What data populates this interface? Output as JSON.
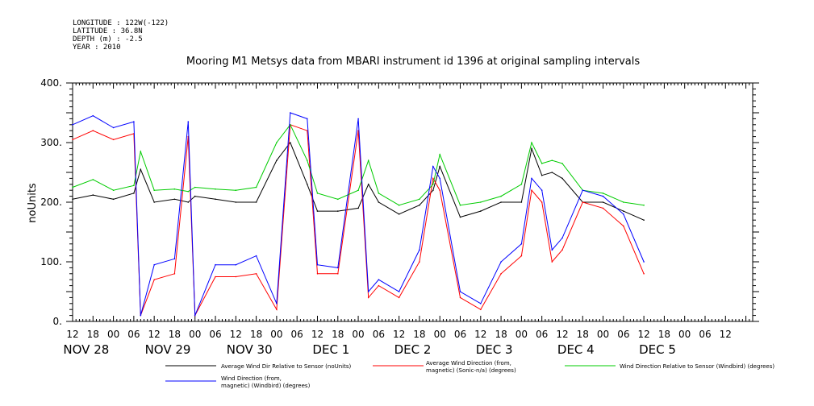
{
  "header": {
    "longitude": "LONGITUDE : 122W(-122)",
    "latitude": "LATITUDE : 36.8N",
    "depth": "DEPTH (m) : -2.5",
    "year": "YEAR : 2010"
  },
  "chart_data": {
    "type": "line",
    "title": "Mooring M1 Metsys data from MBARI instrument id 1396 at original sampling intervals",
    "ylabel": "noUnits",
    "xlabel": "",
    "ylim": [
      0,
      400
    ],
    "yticks": [
      0,
      100,
      200,
      300,
      400
    ],
    "ytick_labels": [
      "0.",
      "100.",
      "200.",
      "300.",
      "400."
    ],
    "xlim_hours": [
      0,
      200
    ],
    "hour_ticks": [
      "12",
      "18",
      "00",
      "06",
      "12",
      "18",
      "00",
      "06",
      "12",
      "18",
      "00",
      "06",
      "12",
      "18",
      "00",
      "06",
      "12",
      "18",
      "00",
      "06",
      "12",
      "18",
      "00",
      "06",
      "12",
      "18",
      "00",
      "06",
      "12",
      "18",
      "00",
      "06",
      "12"
    ],
    "date_labels": [
      "NOV 28",
      "NOV 29",
      "NOV 30",
      "DEC  1",
      "DEC  2",
      "DEC  3",
      "DEC  4",
      "DEC  5"
    ],
    "x": [
      "Nov 28 12:00",
      "Nov 28 18:00",
      "Nov 29 00:00",
      "Nov 29 06:00",
      "Nov 29 08:00",
      "Nov 29 12:00",
      "Nov 29 18:00",
      "Nov 29 22:00",
      "Nov 30 00:00",
      "Nov 30 06:00",
      "Nov 30 12:00",
      "Nov 30 18:00",
      "Dec 1 00:00",
      "Dec 1 04:00",
      "Dec 1 09:00",
      "Dec 1 12:00",
      "Dec 1 18:00",
      "Dec 2 00:00",
      "Dec 2 03:00",
      "Dec 2 06:00",
      "Dec 2 12:00",
      "Dec 2 18:00",
      "Dec 2 22:00",
      "Dec 3 00:00",
      "Dec 3 06:00",
      "Dec 3 12:00",
      "Dec 3 18:00",
      "Dec 4 00:00",
      "Dec 4 03:00",
      "Dec 4 06:00",
      "Dec 4 09:00",
      "Dec 4 12:00",
      "Dec 4 18:00",
      "Dec 5 00:00",
      "Dec 5 06:00",
      "Dec 5 12:00"
    ],
    "series": [
      {
        "name": "Average Wind Dir Relative to Sensor (noUnits)",
        "color": "#000000",
        "values": [
          205,
          212,
          205,
          215,
          255,
          200,
          205,
          200,
          210,
          205,
          200,
          200,
          270,
          300,
          230,
          185,
          185,
          190,
          230,
          200,
          180,
          195,
          220,
          260,
          175,
          185,
          200,
          200,
          290,
          245,
          250,
          240,
          200,
          200,
          185,
          170
        ]
      },
      {
        "name": "Average Wind Direction (from, magnetic) (Sonic-n/a) (degrees)",
        "color": "#ff0000",
        "values": [
          305,
          320,
          305,
          315,
          10,
          70,
          80,
          310,
          10,
          75,
          75,
          80,
          20,
          330,
          320,
          80,
          80,
          320,
          40,
          60,
          40,
          100,
          240,
          220,
          40,
          20,
          80,
          110,
          220,
          200,
          100,
          120,
          200,
          190,
          160,
          80
        ]
      },
      {
        "name": "Wind Direction Relative to Sensor (Windbird) (degrees)",
        "color": "#00cc00",
        "values": [
          225,
          238,
          220,
          228,
          285,
          220,
          222,
          218,
          225,
          222,
          220,
          225,
          300,
          330,
          270,
          215,
          205,
          220,
          270,
          215,
          195,
          205,
          230,
          280,
          195,
          200,
          210,
          230,
          300,
          265,
          270,
          265,
          220,
          215,
          200,
          195
        ]
      },
      {
        "name": "Wind Direction (from, magnetic) (Windbird) (degrees)",
        "color": "#0000ff",
        "values": [
          330,
          345,
          325,
          335,
          10,
          95,
          105,
          335,
          10,
          95,
          95,
          110,
          30,
          350,
          340,
          95,
          90,
          340,
          50,
          70,
          50,
          120,
          260,
          240,
          50,
          30,
          100,
          130,
          240,
          220,
          120,
          140,
          220,
          210,
          180,
          100
        ]
      }
    ]
  }
}
